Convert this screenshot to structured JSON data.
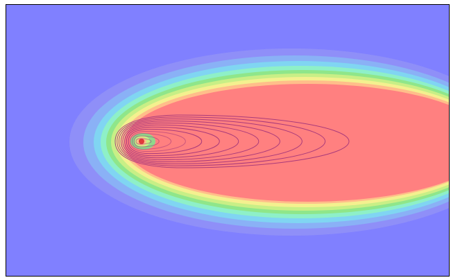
{
  "chart_data": {
    "type": "heatmap",
    "title": "",
    "xlabel": "",
    "ylabel": "",
    "grid": false,
    "legend": "none",
    "colors": {
      "background": "#8080ff",
      "border": "#000000",
      "contour_line": "#a0327a"
    },
    "filled_bands": [
      {
        "level": 1,
        "color": "#8f8ff8"
      },
      {
        "level": 2,
        "color": "#8ab1f6"
      },
      {
        "level": 3,
        "color": "#80d5f2"
      },
      {
        "level": 4,
        "color": "#8ef0c8"
      },
      {
        "level": 5,
        "color": "#8fe68a"
      },
      {
        "level": 6,
        "color": "#c8ef86"
      },
      {
        "level": 7,
        "color": "#f4f08f"
      },
      {
        "level": 8,
        "color": "#ffbe8a"
      },
      {
        "level": 9,
        "color": "#ff8080"
      }
    ],
    "source_marker_color": "#e03a3a",
    "contour_count": 12
  }
}
